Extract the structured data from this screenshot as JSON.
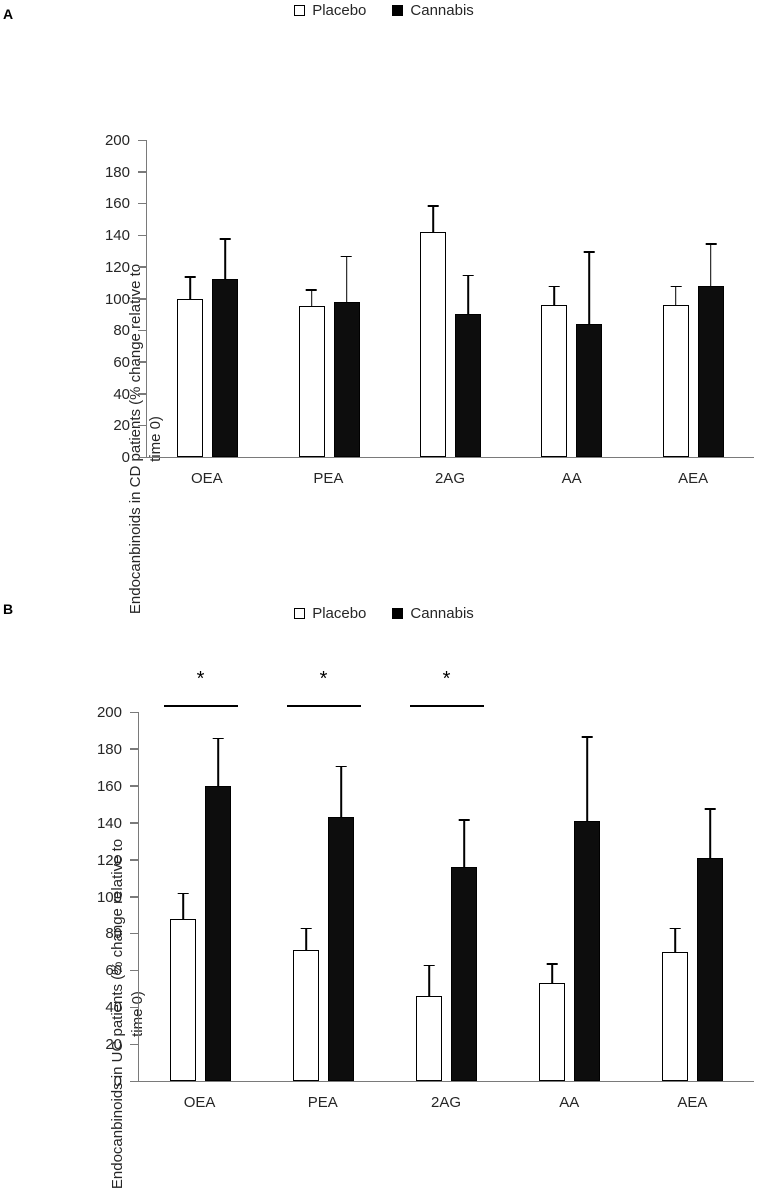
{
  "chart_data": [
    {
      "id": "panel-a",
      "panel_label": "A",
      "type": "bar",
      "title": "",
      "xlabel": "",
      "ylabel": "Endocanbinoids in CD patients (% change relative to time 0)",
      "ylim": [
        0,
        200
      ],
      "ytick_step": 20,
      "grid": false,
      "legend_position": "top-center",
      "categories": [
        "OEA",
        "PEA",
        "2AG",
        "AA",
        "AEA"
      ],
      "legend": [
        {
          "label": "Placebo",
          "fill": "#ffffff",
          "border": "#000000"
        },
        {
          "label": "Cannabis",
          "fill": "#000000",
          "border": "#000000"
        }
      ],
      "series": [
        {
          "name": "Placebo",
          "values": [
            100,
            95,
            142,
            96,
            96
          ],
          "errors": [
            14,
            11,
            17,
            12,
            12
          ]
        },
        {
          "name": "Cannabis",
          "values": [
            112,
            98,
            90,
            84,
            108
          ],
          "errors": [
            26,
            29,
            25,
            46,
            27
          ]
        }
      ],
      "significance": []
    },
    {
      "id": "panel-b",
      "panel_label": "B",
      "type": "bar",
      "title": "",
      "xlabel": "",
      "ylabel": "Endocanbinoids in UC patients (% change relative to time 0)",
      "ylim": [
        0,
        200
      ],
      "ytick_step": 20,
      "grid": false,
      "legend_position": "top-center",
      "categories": [
        "OEA",
        "PEA",
        "2AG",
        "AA",
        "AEA"
      ],
      "legend": [
        {
          "label": "Placebo",
          "fill": "#ffffff",
          "border": "#000000"
        },
        {
          "label": "Cannabis",
          "fill": "#000000",
          "border": "#000000"
        }
      ],
      "series": [
        {
          "name": "Placebo",
          "values": [
            88,
            71,
            46,
            53,
            70
          ],
          "errors": [
            14,
            12,
            17,
            11,
            13
          ]
        },
        {
          "name": "Cannabis",
          "values": [
            160,
            143,
            116,
            141,
            121
          ],
          "errors": [
            26,
            28,
            26,
            46,
            27
          ]
        }
      ],
      "significance": [
        {
          "category_index": 0,
          "label": "*"
        },
        {
          "category_index": 1,
          "label": "*"
        },
        {
          "category_index": 2,
          "label": "*"
        }
      ]
    }
  ]
}
